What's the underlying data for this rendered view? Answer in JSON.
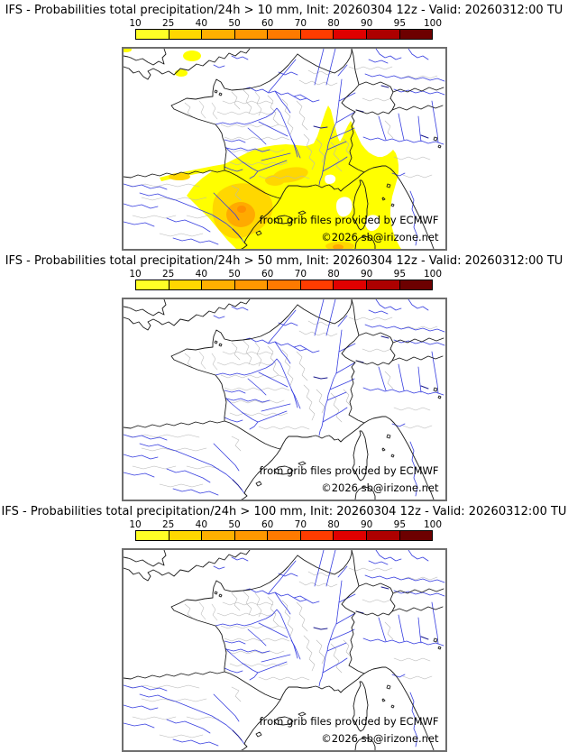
{
  "panels": [
    {
      "title": "IFS - Probabilities total precipitation/24h > 10 mm, Init: 20260304 12z - Valid: 20260312:00 TU",
      "threshold_mm": 10,
      "init": "20260304 12z",
      "valid": "20260312:00 TU",
      "overlay_present": true,
      "overlay_regions": "small patches over southern England; broad 10-25% area over southwest France, Gulf of Lion, northeast Spain, Balearic sea, Corsica and western Mediterranean; 25-40% near Languedoc coast and Catalonia; 40-60% core over northeast Spain"
    },
    {
      "title": "IFS - Probabilities total precipitation/24h > 50 mm, Init: 20260304 12z - Valid: 20260312:00 TU",
      "threshold_mm": 50,
      "init": "20260304 12z",
      "valid": "20260312:00 TU",
      "overlay_present": false,
      "overlay_regions": "none"
    },
    {
      "title": "IFS - Probabilities total precipitation/24h > 100 mm, Init: 20260304 12z - Valid: 20260312:00 TU",
      "threshold_mm": 100,
      "init": "20260304 12z",
      "valid": "20260312:00 TU",
      "overlay_present": false,
      "overlay_regions": "none"
    }
  ],
  "colorbar": {
    "tick_labels": [
      "10",
      "25",
      "40",
      "50",
      "60",
      "70",
      "80",
      "90",
      "95",
      "100"
    ],
    "segment_colors": [
      "#ffff26",
      "#ffd700",
      "#ffb000",
      "#ff9800",
      "#ff7a00",
      "#ff3c00",
      "#e00000",
      "#ad0000",
      "#6d0000"
    ],
    "unit": "%"
  },
  "map": {
    "attribution_line1": "from grib files provided by ECMWF",
    "attribution_line2": "©2026 sb@irizone.net",
    "colors": {
      "coast": "#1a1a1a",
      "departments": "#b8b8b8",
      "rivers": "#3940e0",
      "rivers_dark": "#1c1c8e",
      "overlay_10": "#ffff00",
      "overlay_25": "#ffd700",
      "overlay_40": "#ffaa00",
      "overlay_50": "#ff9000",
      "frame": "#6e6e6e"
    }
  }
}
